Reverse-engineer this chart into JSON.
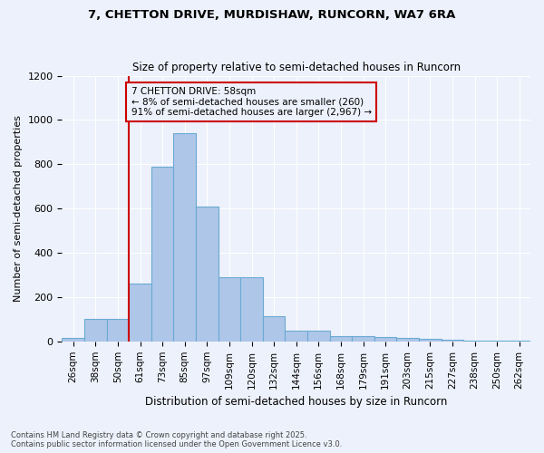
{
  "title_line1": "7, CHETTON DRIVE, MURDISHAW, RUNCORN, WA7 6RA",
  "title_line2": "Size of property relative to semi-detached houses in Runcorn",
  "xlabel": "Distribution of semi-detached houses by size in Runcorn",
  "ylabel": "Number of semi-detached properties",
  "categories": [
    "26sqm",
    "38sqm",
    "50sqm",
    "61sqm",
    "73sqm",
    "85sqm",
    "97sqm",
    "109sqm",
    "120sqm",
    "132sqm",
    "144sqm",
    "156sqm",
    "168sqm",
    "179sqm",
    "191sqm",
    "203sqm",
    "215sqm",
    "227sqm",
    "238sqm",
    "250sqm",
    "262sqm"
  ],
  "values": [
    15,
    100,
    100,
    260,
    790,
    940,
    610,
    290,
    290,
    115,
    50,
    50,
    25,
    25,
    20,
    15,
    10,
    8,
    5,
    5,
    5
  ],
  "bar_color": "#aec6e8",
  "bar_edge_color": "#6aaad4",
  "vline_color": "#cc0000",
  "box_edge_color": "#cc0000",
  "background_color": "#edf1fb",
  "grid_color": "#ffffff",
  "ylim": [
    0,
    1200
  ],
  "yticks": [
    0,
    200,
    400,
    600,
    800,
    1000,
    1200
  ],
  "annotation_title": "7 CHETTON DRIVE: 58sqm",
  "annotation_line1": "← 8% of semi-detached houses are smaller (260)",
  "annotation_line2": "91% of semi-detached houses are larger (2,967) →",
  "footer_line1": "Contains HM Land Registry data © Crown copyright and database right 2025.",
  "footer_line2": "Contains public sector information licensed under the Open Government Licence v3.0."
}
